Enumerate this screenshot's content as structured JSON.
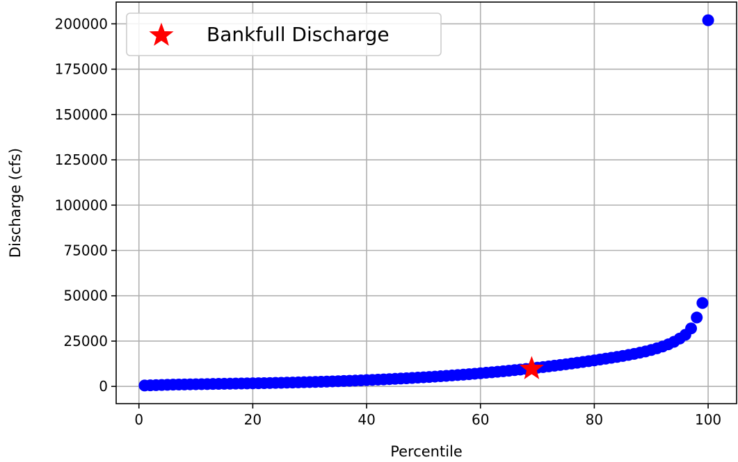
{
  "chart_data": {
    "type": "scatter",
    "title": "",
    "xlabel": "Percentile",
    "ylabel": "Discharge (cfs)",
    "xlim": [
      -4,
      105
    ],
    "ylim": [
      -9500,
      212000
    ],
    "xticks": [
      0,
      20,
      40,
      60,
      80,
      100
    ],
    "yticks": [
      0,
      25000,
      50000,
      75000,
      100000,
      125000,
      150000,
      175000,
      200000
    ],
    "grid": true,
    "legend_position": "top-left",
    "series": [
      {
        "kind": "points",
        "color": "#0000ff",
        "x": [
          1,
          2,
          3,
          4,
          5,
          6,
          7,
          8,
          9,
          10,
          11,
          12,
          13,
          14,
          15,
          16,
          17,
          18,
          19,
          20,
          21,
          22,
          23,
          24,
          25,
          26,
          27,
          28,
          29,
          30,
          31,
          32,
          33,
          34,
          35,
          36,
          37,
          38,
          39,
          40,
          41,
          42,
          43,
          44,
          45,
          46,
          47,
          48,
          49,
          50,
          51,
          52,
          53,
          54,
          55,
          56,
          57,
          58,
          59,
          60,
          61,
          62,
          63,
          64,
          65,
          66,
          67,
          68,
          69,
          70,
          71,
          72,
          73,
          74,
          75,
          76,
          77,
          78,
          79,
          80,
          81,
          82,
          83,
          84,
          85,
          86,
          87,
          88,
          89,
          90,
          91,
          92,
          93,
          94,
          95,
          96,
          97,
          98,
          99,
          100
        ],
        "y": [
          500,
          600,
          700,
          800,
          900,
          1000,
          1050,
          1100,
          1150,
          1200,
          1250,
          1300,
          1350,
          1400,
          1450,
          1500,
          1550,
          1600,
          1650,
          1700,
          1750,
          1800,
          1870,
          1940,
          2010,
          2080,
          2150,
          2230,
          2310,
          2400,
          2490,
          2580,
          2680,
          2780,
          2880,
          2990,
          3100,
          3220,
          3340,
          3470,
          3600,
          3740,
          3880,
          4030,
          4180,
          4340,
          4500,
          4670,
          4850,
          5030,
          5220,
          5420,
          5620,
          5830,
          6050,
          6280,
          6510,
          6750,
          7000,
          7260,
          7530,
          7800,
          8080,
          8370,
          8670,
          8980,
          9300,
          9630,
          9970,
          10320,
          10680,
          11050,
          11430,
          11820,
          12220,
          12630,
          13050,
          13480,
          13920,
          14370,
          14830,
          15300,
          15780,
          16280,
          16800,
          17350,
          17950,
          18600,
          19300,
          20100,
          21000,
          22000,
          23200,
          24600,
          26400,
          28500,
          32000,
          38000,
          46000,
          202000
        ]
      },
      {
        "kind": "star",
        "name": "Bankfull Discharge",
        "color": "#ff0000",
        "x": [
          69
        ],
        "y": [
          9700
        ]
      }
    ]
  }
}
